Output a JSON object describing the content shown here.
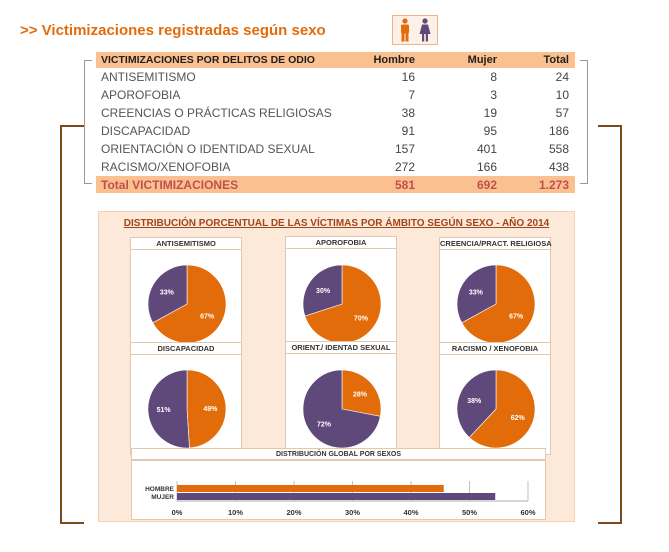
{
  "title": ">> Victimizaciones registradas según sexo",
  "table": {
    "headers": [
      "VICTIMIZACIONES POR DELITOS DE ODIO",
      "Hombre",
      "Mujer",
      "Total"
    ],
    "rows": [
      {
        "name": "ANTISEMITISMO",
        "hombre": "16",
        "mujer": "8",
        "total": "24"
      },
      {
        "name": "APOROFOBIA",
        "hombre": "7",
        "mujer": "3",
        "total": "10"
      },
      {
        "name": "CREENCIAS O PRÁCTICAS RELIGIOSAS",
        "hombre": "38",
        "mujer": "19",
        "total": "57"
      },
      {
        "name": "DISCAPACIDAD",
        "hombre": "91",
        "mujer": "95",
        "total": "186"
      },
      {
        "name": "ORIENTACIÓN O IDENTIDAD SEXUAL",
        "hombre": "157",
        "mujer": "401",
        "total": "558"
      },
      {
        "name": "RACISMO/XENOFOBIA",
        "hombre": "272",
        "mujer": "166",
        "total": "438"
      }
    ],
    "total": {
      "name": "Total VICTIMIZACIONES",
      "hombre": "581",
      "mujer": "692",
      "total": "1.273"
    }
  },
  "panel": {
    "title": "DISTRIBUCIÓN PORCENTUAL DE LAS VÍCTIMAS POR ÁMBITO SEGÚN SEXO - AÑO 2014"
  },
  "colors": {
    "hombre": "#e36c0a",
    "mujer": "#5f497a",
    "header": "#fac090",
    "panel": "#fde9d9"
  },
  "chart_data": [
    {
      "type": "pie",
      "title": "ANTISEMITISMO",
      "categories": [
        "Hombre",
        "Mujer"
      ],
      "values": [
        67,
        33
      ],
      "labels": [
        "67%",
        "33%"
      ]
    },
    {
      "type": "pie",
      "title": "APOROFOBIA",
      "categories": [
        "Hombre",
        "Mujer"
      ],
      "values": [
        70,
        30
      ],
      "labels": [
        "70%",
        "30%"
      ]
    },
    {
      "type": "pie",
      "title": "CREENCIA/PRACT. RELIGIOSA",
      "categories": [
        "Hombre",
        "Mujer"
      ],
      "values": [
        67,
        33
      ],
      "labels": [
        "67%",
        "33%"
      ]
    },
    {
      "type": "pie",
      "title": "DISCAPACIDAD",
      "categories": [
        "Hombre",
        "Mujer"
      ],
      "values": [
        49,
        51
      ],
      "labels": [
        "49%",
        "51%"
      ]
    },
    {
      "type": "pie",
      "title": "ORIENT./ IDENTAD SEXUAL",
      "categories": [
        "Hombre",
        "Mujer"
      ],
      "values": [
        28,
        72
      ],
      "labels": [
        "28%",
        "72%"
      ]
    },
    {
      "type": "pie",
      "title": "RACISMO / XENOFOBIA",
      "categories": [
        "Hombre",
        "Mujer"
      ],
      "values": [
        62,
        38
      ],
      "labels": [
        "62%",
        "38%"
      ]
    },
    {
      "type": "bar",
      "orientation": "horizontal",
      "title": "DISTRIBUCIÓN GLOBAL POR SEXOS",
      "categories": [
        "HOMBRE",
        "MUJER"
      ],
      "values": [
        45.6,
        54.4
      ],
      "xlim": [
        0,
        60
      ],
      "xticks": [
        "0%",
        "10%",
        "20%",
        "30%",
        "40%",
        "50%",
        "60%"
      ]
    }
  ]
}
